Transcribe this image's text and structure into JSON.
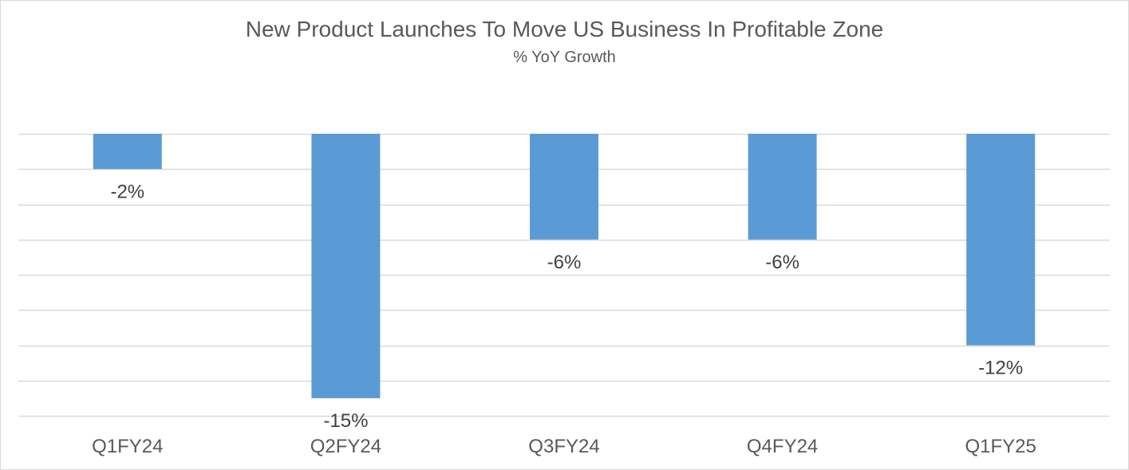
{
  "chart_data": {
    "type": "bar",
    "title": "New Product Launches To Move US Business In Profitable Zone",
    "subtitle": "% YoY Growth",
    "categories": [
      "Q1FY24",
      "Q2FY24",
      "Q3FY24",
      "Q4FY24",
      "Q1FY25"
    ],
    "values": [
      -2,
      -15,
      -6,
      -6,
      -12
    ],
    "data_labels": [
      "-2%",
      "-15%",
      "-6%",
      "-6%",
      "-12%"
    ],
    "ylim": [
      -16,
      0
    ],
    "gridlines": true,
    "legend": "none",
    "bar_color": "#5b9bd5",
    "grid_color": "#d9d9d9"
  }
}
